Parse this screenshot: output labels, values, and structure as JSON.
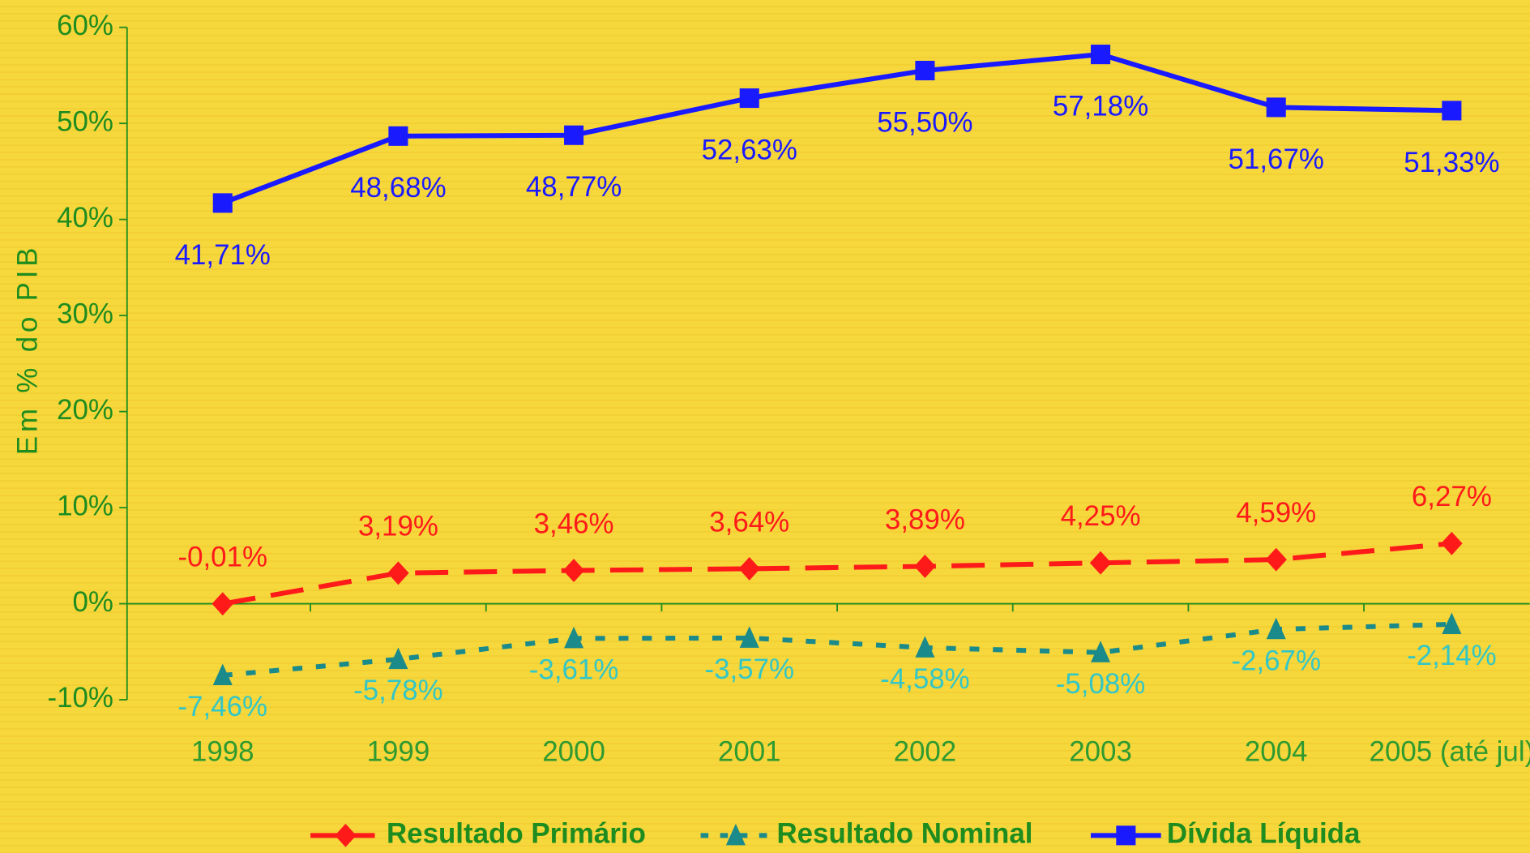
{
  "chart_data": {
    "type": "line",
    "y_label": "Em % do PIB",
    "categories": [
      "1998",
      "1999",
      "2000",
      "2001",
      "2002",
      "2003",
      "2004",
      "2005 (até jul)"
    ],
    "ylim": [
      -10,
      60
    ],
    "yticks": [
      {
        "value": -10,
        "label": "-10%"
      },
      {
        "value": 0,
        "label": "0%"
      },
      {
        "value": 10,
        "label": "10%"
      },
      {
        "value": 20,
        "label": "20%"
      },
      {
        "value": 30,
        "label": "30%"
      },
      {
        "value": 40,
        "label": "40%"
      },
      {
        "value": 50,
        "label": "50%"
      },
      {
        "value": 60,
        "label": "60%"
      }
    ],
    "legend": "bottom",
    "series": [
      {
        "name": "Resultado Primário",
        "color": "#ff1a1a",
        "label_color": "#ff1a1a",
        "marker": "diamond",
        "dash": "dashed",
        "values": [
          -0.01,
          3.19,
          3.46,
          3.64,
          3.89,
          4.25,
          4.59,
          6.27
        ],
        "value_labels": [
          "-0,01%",
          "3,19%",
          "3,46%",
          "3,64%",
          "3,89%",
          "4,25%",
          "4,59%",
          "6,27%"
        ]
      },
      {
        "name": "Resultado Nominal",
        "color": "#1a8a8a",
        "label_color": "#33c6c6",
        "marker": "triangle",
        "dash": "dotted",
        "values": [
          -7.46,
          -5.78,
          -3.61,
          -3.57,
          -4.58,
          -5.08,
          -2.67,
          -2.14
        ],
        "value_labels": [
          "-7,46%",
          "-5,78%",
          "-3,61%",
          "-3,57%",
          "-4,58%",
          "-5,08%",
          "-2,67%",
          "-2,14%"
        ]
      },
      {
        "name": "Dívida Líquida",
        "color": "#1a1aff",
        "label_color": "#1a1aff",
        "marker": "square",
        "dash": "solid",
        "values": [
          41.71,
          48.68,
          48.77,
          52.63,
          55.5,
          57.18,
          51.67,
          51.33
        ],
        "value_labels": [
          "41,71%",
          "48,68%",
          "48,77%",
          "52,63%",
          "55,50%",
          "57,18%",
          "51,67%",
          "51,33%"
        ]
      }
    ]
  }
}
